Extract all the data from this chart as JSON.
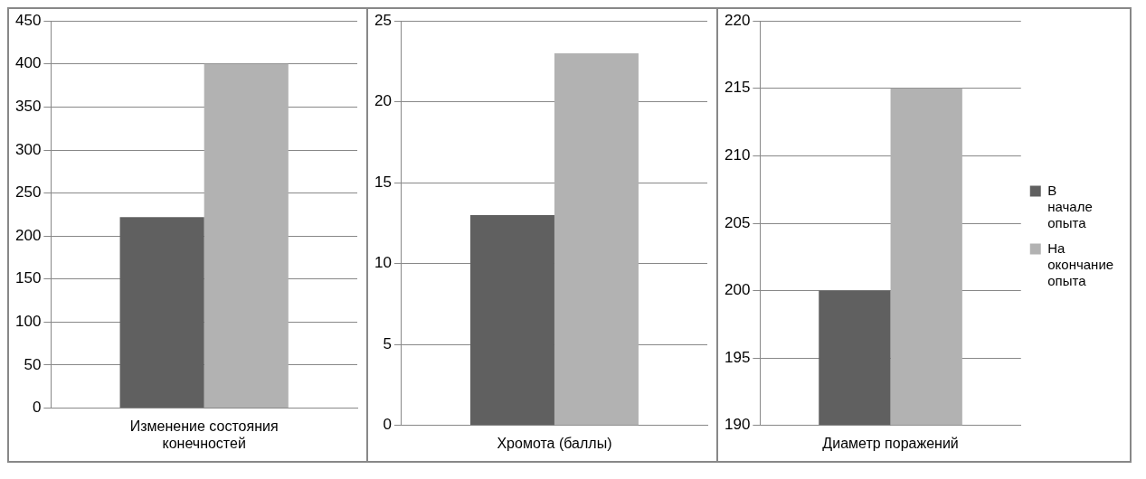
{
  "chart_data": [
    {
      "type": "bar",
      "categories": [
        "Изменение состояния конечностей"
      ],
      "series": [
        {
          "color": "#606060",
          "values": [
            222
          ]
        },
        {
          "color": "#b2b2b2",
          "values": [
            400
          ]
        }
      ],
      "ylim": [
        0,
        450
      ],
      "yticks": [
        0,
        50,
        100,
        150,
        200,
        250,
        300,
        350,
        400,
        450
      ],
      "grid": "y",
      "legend": false
    },
    {
      "type": "bar",
      "categories": [
        "Хромота (баллы)"
      ],
      "series": [
        {
          "color": "#606060",
          "values": [
            13
          ]
        },
        {
          "color": "#b2b2b2",
          "values": [
            23
          ]
        }
      ],
      "ylim": [
        0,
        25
      ],
      "yticks": [
        0,
        5,
        10,
        15,
        20,
        25
      ],
      "grid": "y",
      "legend": false
    },
    {
      "type": "bar",
      "categories": [
        "Диаметр поражений"
      ],
      "series": [
        {
          "name": "В начале опыта",
          "color": "#606060",
          "values": [
            200
          ]
        },
        {
          "name": "На окончание опыта",
          "color": "#b2b2b2",
          "values": [
            215
          ]
        }
      ],
      "ylim": [
        190,
        220
      ],
      "yticks": [
        190,
        195,
        200,
        205,
        210,
        215,
        220
      ],
      "grid": "y",
      "legend": "right"
    }
  ]
}
